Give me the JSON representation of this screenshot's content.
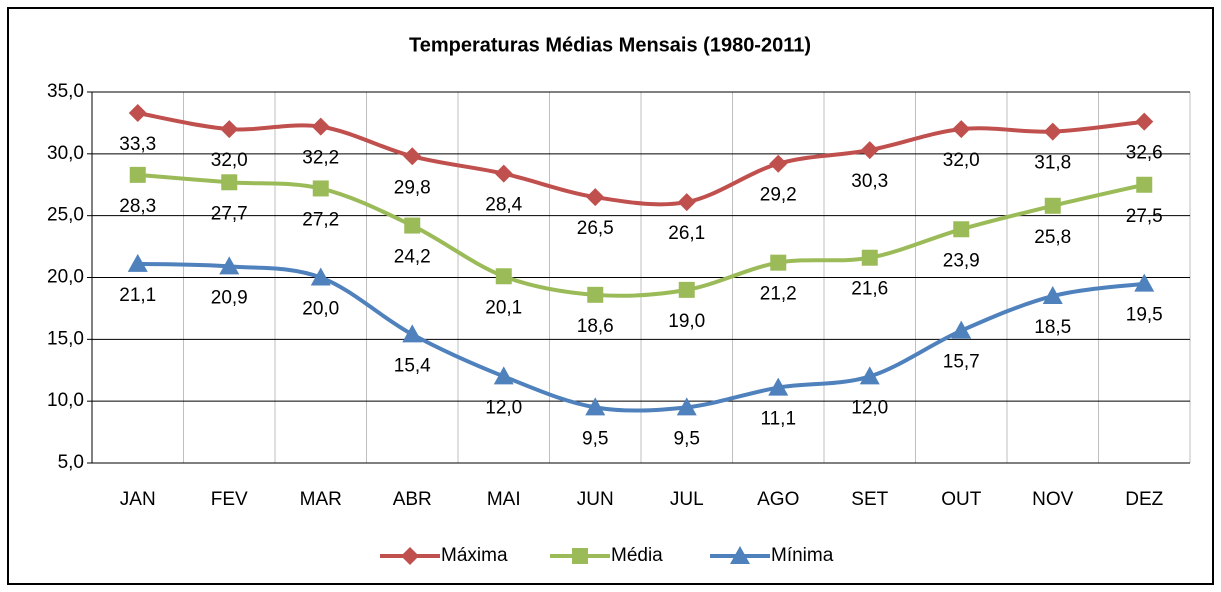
{
  "chart_data": {
    "type": "line",
    "title": "Temperaturas Médias Mensais (1980-2011)",
    "categories": [
      "JAN",
      "FEV",
      "MAR",
      "ABR",
      "MAI",
      "JUN",
      "JUL",
      "AGO",
      "SET",
      "OUT",
      "NOV",
      "DEZ"
    ],
    "series": [
      {
        "name": "Máxima",
        "color": "#c0504d",
        "marker": "diamond",
        "values": [
          33.3,
          32.0,
          32.2,
          29.8,
          28.4,
          26.5,
          26.1,
          29.2,
          30.3,
          32.0,
          31.8,
          32.6
        ],
        "value_labels": [
          "33,3",
          "32,0",
          "32,2",
          "29,8",
          "28,4",
          "26,5",
          "26,1",
          "29,2",
          "30,3",
          "32,0",
          "31,8",
          "32,6"
        ]
      },
      {
        "name": "Média",
        "color": "#9bbb59",
        "marker": "square",
        "values": [
          28.3,
          27.7,
          27.2,
          24.2,
          20.1,
          18.6,
          19.0,
          21.2,
          21.6,
          23.9,
          25.8,
          27.5
        ],
        "value_labels": [
          "28,3",
          "27,7",
          "27,2",
          "24,2",
          "20,1",
          "18,6",
          "19,0",
          "21,2",
          "21,6",
          "23,9",
          "25,8",
          "27,5"
        ]
      },
      {
        "name": "Mínima",
        "color": "#4f81bd",
        "marker": "triangle",
        "values": [
          21.1,
          20.9,
          20.0,
          15.4,
          12.0,
          9.5,
          9.5,
          11.1,
          12.0,
          15.7,
          18.5,
          19.5
        ],
        "value_labels": [
          "21,1",
          "20,9",
          "20,0",
          "15,4",
          "12,0",
          "9,5",
          "9,5",
          "11,1",
          "12,0",
          "15,7",
          "18,5",
          "19,5"
        ]
      }
    ],
    "ylim": [
      5,
      35
    ],
    "yticks": [
      {
        "value": 5,
        "label": "5,0"
      },
      {
        "value": 10,
        "label": "10,0"
      },
      {
        "value": 15,
        "label": "15,0"
      },
      {
        "value": 20,
        "label": "20,0"
      },
      {
        "value": 25,
        "label": "25,0"
      },
      {
        "value": 30,
        "label": "30,0"
      },
      {
        "value": 35,
        "label": "35,0"
      }
    ],
    "grid": true,
    "legend": "bottom",
    "smooth": true
  }
}
